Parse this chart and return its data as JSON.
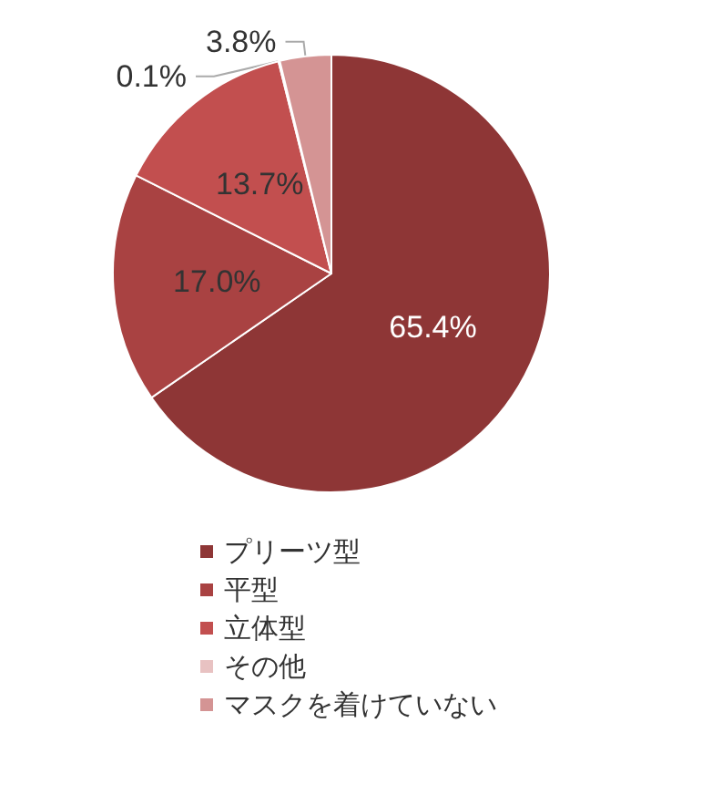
{
  "chart_data": {
    "type": "pie",
    "categories": [
      "プリーツ型",
      "平型",
      "立体型",
      "その他",
      "マスクを着けていない"
    ],
    "values": [
      65.4,
      17.0,
      13.7,
      0.1,
      3.8
    ],
    "value_labels": [
      "65.4%",
      "17.0%",
      "13.7%",
      "0.1%",
      "3.8%"
    ],
    "colors": [
      "#8e3636",
      "#a94242",
      "#c24f4f",
      "#e8c2c2",
      "#d49494"
    ],
    "legend": "bottom"
  }
}
